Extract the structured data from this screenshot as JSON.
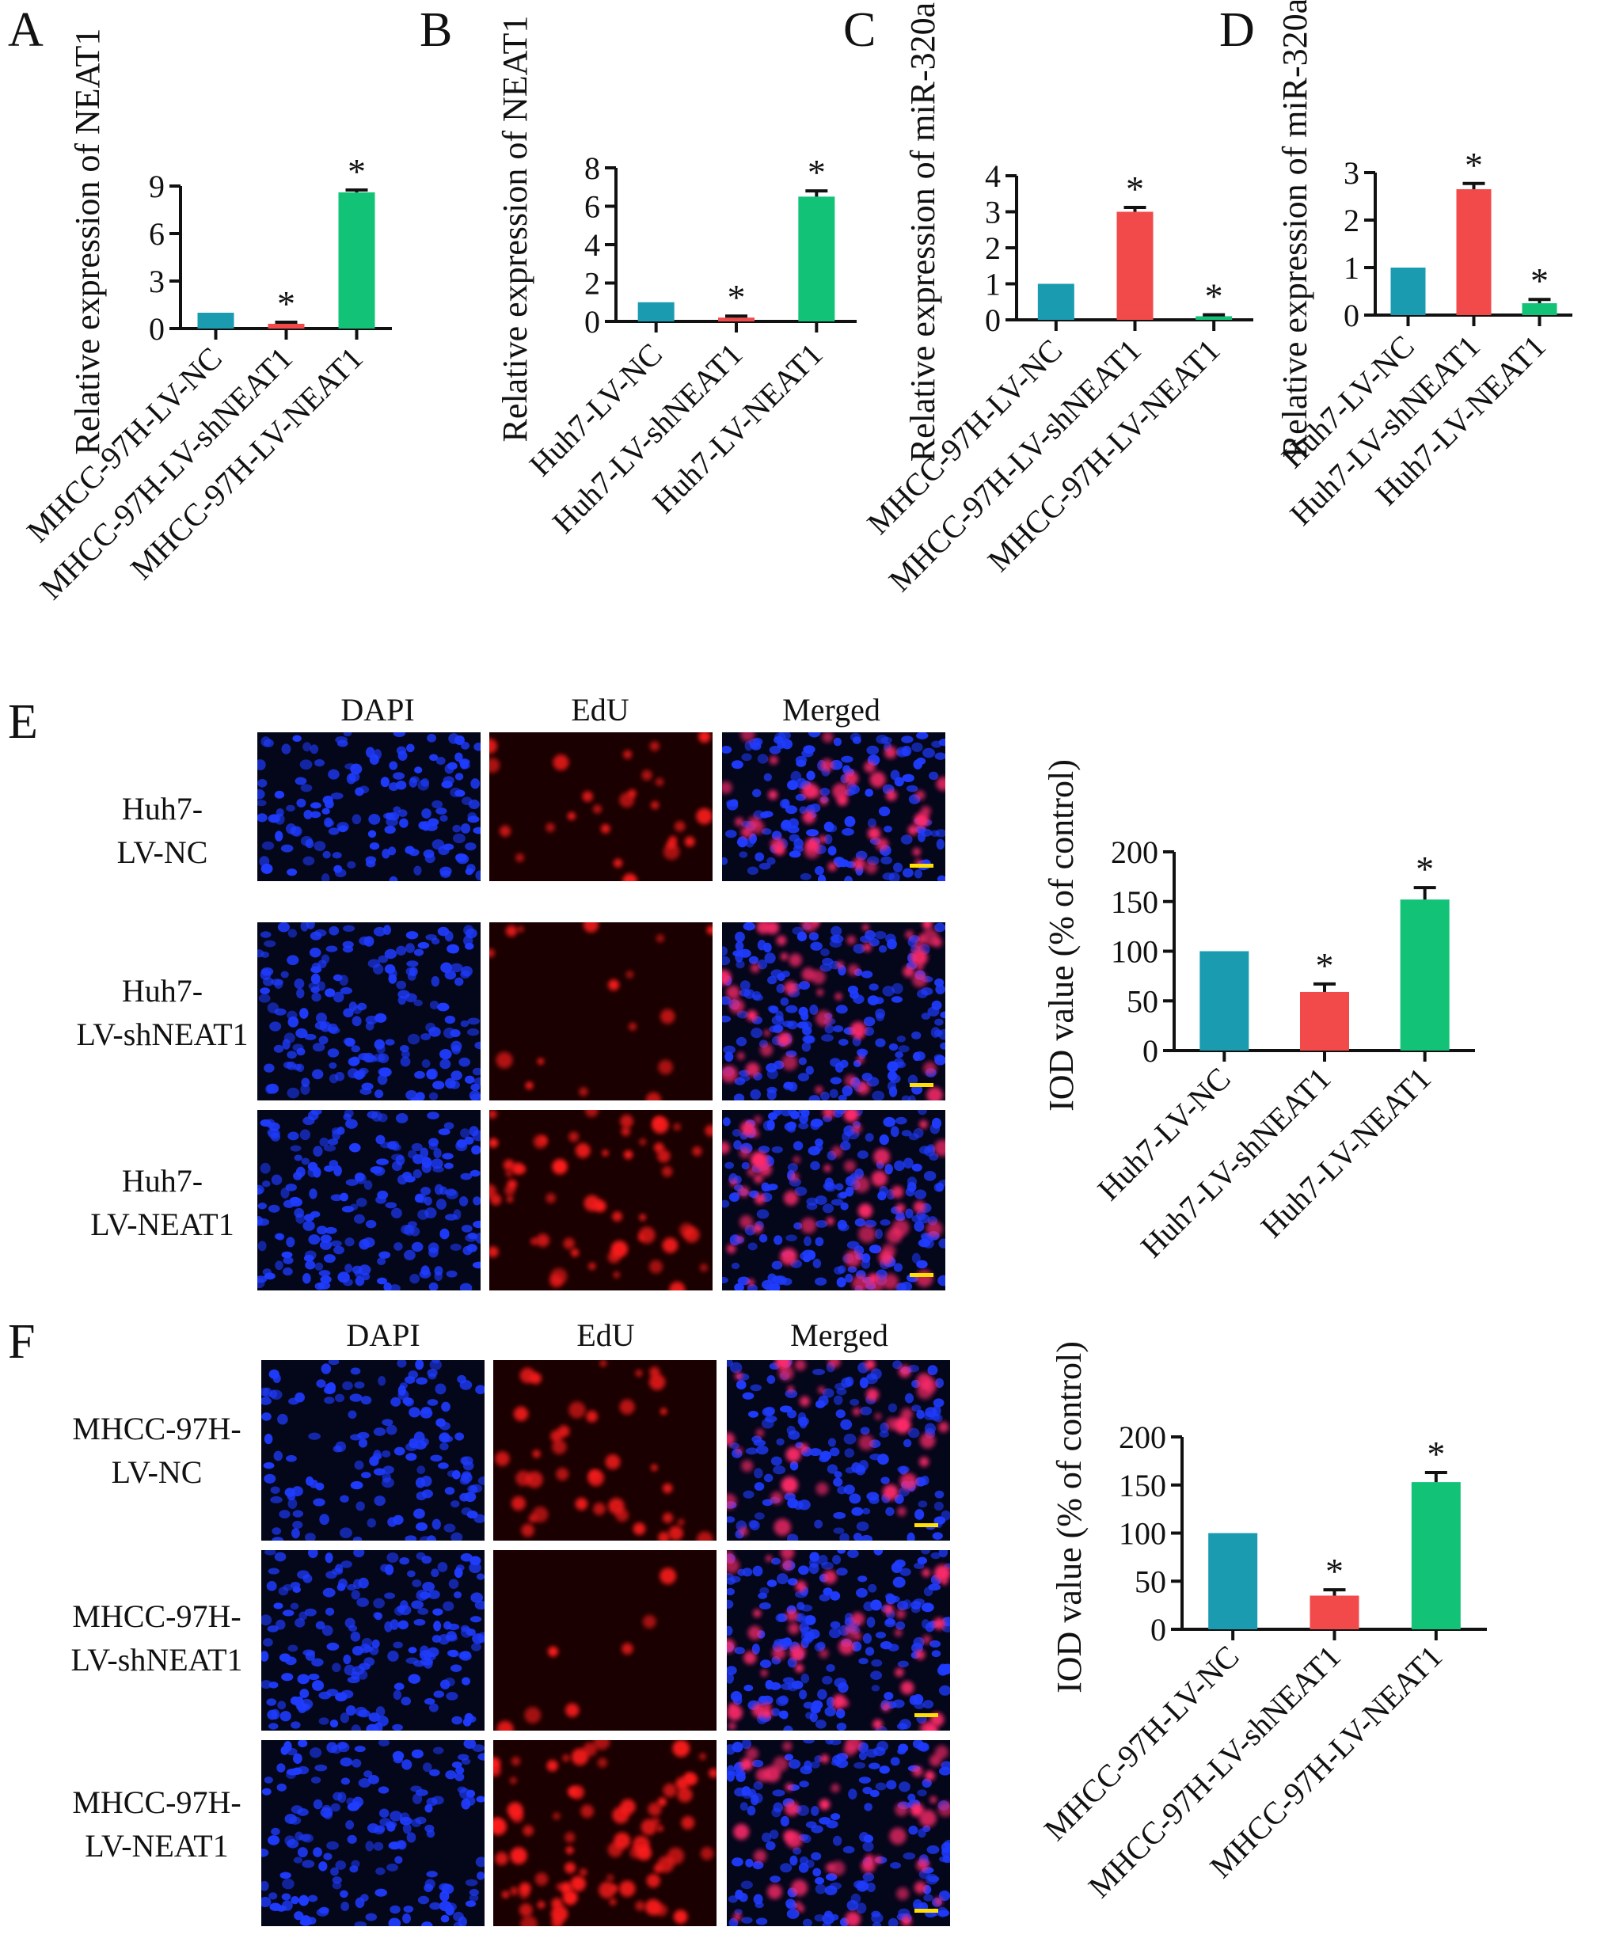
{
  "figure": {
    "panels": {
      "A": "A",
      "B": "B",
      "C": "C",
      "D": "D",
      "E": "E",
      "F": "F"
    },
    "micrograph_panels": [
      {
        "id": "E",
        "columns": [
          "DAPI",
          "EdU",
          "Merged"
        ],
        "rows": [
          [
            "Huh7-",
            "LV-NC"
          ],
          [
            "Huh7-",
            "LV-shNEAT1"
          ],
          [
            "Huh7-",
            "LV-NEAT1"
          ]
        ]
      },
      {
        "id": "F",
        "columns": [
          "DAPI",
          "EdU",
          "Merged"
        ],
        "rows": [
          [
            "MHCC-97H-",
            "LV-NC"
          ],
          [
            "MHCC-97H-",
            "LV-shNEAT1"
          ],
          [
            "MHCC-97H-",
            "LV-NEAT1"
          ]
        ]
      }
    ]
  },
  "colors": {
    "teal": "#1a9bb0",
    "red": "#f24a4a",
    "green": "#12c277",
    "dapi_blue": "#1f3cff",
    "edu_red": "#ff1f1f",
    "scale_bar": "#ffe000"
  },
  "chart_data": [
    {
      "id": "A",
      "type": "bar",
      "ylabel": "Relative expression of NEAT1",
      "categories": [
        "MHCC-97H-LV-NC",
        "MHCC-97H-LV-shNEAT1",
        "MHCC-97H-LV-NEAT1"
      ],
      "values": [
        1.0,
        0.3,
        8.6
      ],
      "errors": [
        0,
        0.1,
        0.15
      ],
      "significance": [
        "",
        "*",
        "*"
      ],
      "colors": [
        "#1a9bb0",
        "#f24a4a",
        "#12c277"
      ],
      "ylim": [
        0,
        9
      ],
      "yticks": [
        0,
        3,
        6,
        9
      ]
    },
    {
      "id": "B",
      "type": "bar",
      "ylabel": "Relative expression of NEAT1",
      "categories": [
        "Huh7-LV-NC",
        "Huh7-LV-shNEAT1",
        "Huh7-LV-NEAT1"
      ],
      "values": [
        1.0,
        0.2,
        6.5
      ],
      "errors": [
        0,
        0.08,
        0.3
      ],
      "significance": [
        "",
        "*",
        "*"
      ],
      "colors": [
        "#1a9bb0",
        "#f24a4a",
        "#12c277"
      ],
      "ylim": [
        0,
        8
      ],
      "yticks": [
        0,
        2,
        4,
        6,
        8
      ]
    },
    {
      "id": "C",
      "type": "bar",
      "ylabel": "Relative expression of miR-320a",
      "categories": [
        "MHCC-97H-LV-NC",
        "MHCC-97H-LV-shNEAT1",
        "MHCC-97H-LV-NEAT1"
      ],
      "values": [
        1.0,
        3.0,
        0.1
      ],
      "errors": [
        0,
        0.12,
        0.04
      ],
      "significance": [
        "",
        "*",
        "*"
      ],
      "colors": [
        "#1a9bb0",
        "#f24a4a",
        "#12c277"
      ],
      "ylim": [
        0,
        4
      ],
      "yticks": [
        0,
        1,
        2,
        3,
        4
      ]
    },
    {
      "id": "D",
      "type": "bar",
      "ylabel": "Relative expression of miR-320a",
      "categories": [
        "Huh7-LV-NC",
        "Huh7-LV-shNEAT1",
        "Huh7-LV-NEAT1"
      ],
      "values": [
        1.0,
        2.65,
        0.25
      ],
      "errors": [
        0,
        0.12,
        0.08
      ],
      "significance": [
        "",
        "*",
        "*"
      ],
      "colors": [
        "#1a9bb0",
        "#f24a4a",
        "#12c277"
      ],
      "ylim": [
        0,
        3
      ],
      "yticks": [
        0,
        1,
        2,
        3
      ]
    },
    {
      "id": "E",
      "type": "bar",
      "ylabel": "IOD value (% of control)",
      "categories": [
        "Huh7-LV-NC",
        "Huh7-LV-shNEAT1",
        "Huh7-LV-NEAT1"
      ],
      "values": [
        100,
        59,
        152
      ],
      "errors": [
        0,
        8,
        12
      ],
      "significance": [
        "",
        "*",
        "*"
      ],
      "colors": [
        "#1a9bb0",
        "#f24a4a",
        "#12c277"
      ],
      "ylim": [
        0,
        200
      ],
      "yticks": [
        0,
        50,
        100,
        150,
        200
      ]
    },
    {
      "id": "F",
      "type": "bar",
      "ylabel": "IOD value (% of control)",
      "categories": [
        "MHCC-97H-LV-NC",
        "MHCC-97H-LV-shNEAT1",
        "MHCC-97H-LV-NEAT1"
      ],
      "values": [
        100,
        35,
        153
      ],
      "errors": [
        0,
        6,
        10
      ],
      "significance": [
        "",
        "*",
        "*"
      ],
      "colors": [
        "#1a9bb0",
        "#f24a4a",
        "#12c277"
      ],
      "ylim": [
        0,
        200
      ],
      "yticks": [
        0,
        50,
        100,
        150,
        200
      ]
    }
  ]
}
